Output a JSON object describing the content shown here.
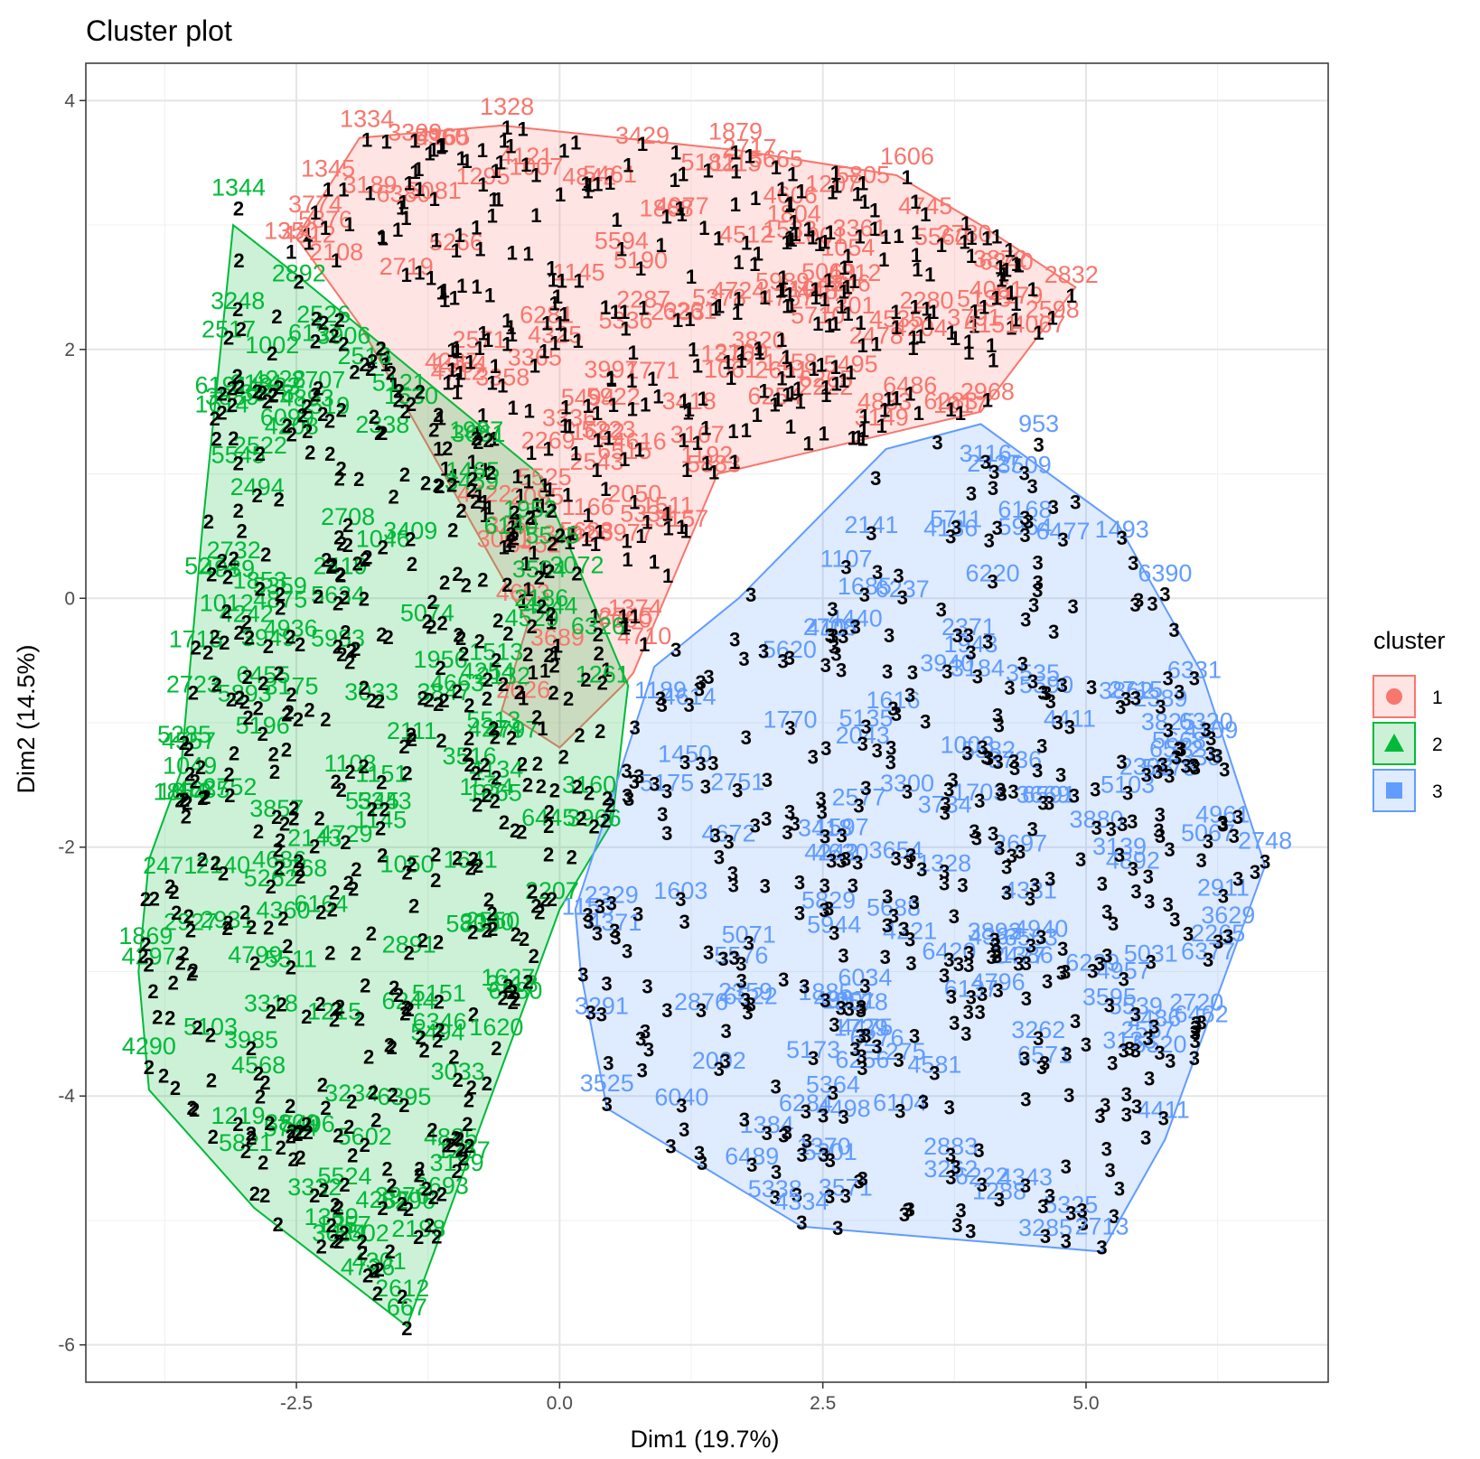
{
  "chart_data": {
    "type": "scatter",
    "title": "Cluster plot",
    "xlabel": "Dim1 (19.7%)",
    "ylabel": "Dim2 (14.5%)",
    "xlim": [
      -4.5,
      7.3
    ],
    "ylim": [
      -6.3,
      4.3
    ],
    "x_ticks": [
      -2.5,
      0.0,
      2.5,
      5.0
    ],
    "x_tick_labels": [
      "-2.5",
      "0.0",
      "2.5",
      "5.0"
    ],
    "y_ticks": [
      -6,
      -4,
      -2,
      0,
      2,
      4
    ],
    "y_tick_labels": [
      "-6",
      "-4",
      "-2",
      "0",
      "2",
      "4"
    ],
    "grid": true,
    "legend": {
      "title": "cluster",
      "position": "right",
      "entries": [
        {
          "label": "1",
          "color": "#F8766D",
          "shape": "circle"
        },
        {
          "label": "2",
          "color": "#00BA38",
          "shape": "triangle"
        },
        {
          "label": "3",
          "color": "#619CFF",
          "shape": "square"
        }
      ]
    },
    "hulls": [
      {
        "cluster": "1",
        "color": "#F8766D",
        "points": [
          [
            -2.5,
            2.9
          ],
          [
            -1.9,
            3.7
          ],
          [
            -0.55,
            3.8
          ],
          [
            1.7,
            3.6
          ],
          [
            3.2,
            3.4
          ],
          [
            4.0,
            3.0
          ],
          [
            4.9,
            2.5
          ],
          [
            4.0,
            1.5
          ],
          [
            1.5,
            1.0
          ],
          [
            0.7,
            -0.6
          ],
          [
            0.6,
            -0.7
          ],
          [
            0.0,
            -1.2
          ],
          [
            -0.55,
            -0.9
          ],
          [
            -0.3,
            -0.2
          ],
          [
            -1.9,
            2.2
          ],
          [
            -2.5,
            2.9
          ]
        ]
      },
      {
        "cluster": "2",
        "color": "#00BA38",
        "points": [
          [
            -3.1,
            3.0
          ],
          [
            -2.5,
            2.6
          ],
          [
            -0.2,
            1.0
          ],
          [
            0.65,
            -0.7
          ],
          [
            0.5,
            -1.8
          ],
          [
            0.0,
            -2.5
          ],
          [
            -1.45,
            -5.85
          ],
          [
            -2.9,
            -4.9
          ],
          [
            -3.9,
            -3.95
          ],
          [
            -4.0,
            -3.0
          ],
          [
            -3.9,
            -2.1
          ],
          [
            -3.6,
            -1.4
          ],
          [
            -3.4,
            0.5
          ],
          [
            -3.1,
            3.0
          ]
        ]
      },
      {
        "cluster": "3",
        "color": "#619CFF",
        "points": [
          [
            0.9,
            -0.55
          ],
          [
            1.7,
            0.0
          ],
          [
            3.1,
            1.2
          ],
          [
            4.0,
            1.4
          ],
          [
            5.3,
            0.6
          ],
          [
            6.1,
            -0.6
          ],
          [
            6.7,
            -2.15
          ],
          [
            5.75,
            -4.35
          ],
          [
            5.15,
            -5.25
          ],
          [
            2.3,
            -5.05
          ],
          [
            0.45,
            -4.1
          ],
          [
            0.2,
            -3.0
          ],
          [
            0.15,
            -2.5
          ],
          [
            0.9,
            -0.55
          ]
        ]
      }
    ],
    "labeled_points": [
      {
        "label": "1334",
        "cluster": "1",
        "x": -1.83,
        "y": 3.7
      },
      {
        "label": "1328",
        "cluster": "1",
        "x": -0.5,
        "y": 3.8
      },
      {
        "label": "1879",
        "cluster": "1",
        "x": 1.67,
        "y": 3.6
      },
      {
        "label": "1606",
        "cluster": "1",
        "x": 3.3,
        "y": 3.4
      },
      {
        "label": "2832",
        "cluster": "1",
        "x": 4.86,
        "y": 2.45
      },
      {
        "label": "4151",
        "cluster": "1",
        "x": 4.1,
        "y": 2.05
      },
      {
        "label": "1345",
        "cluster": "1",
        "x": -2.2,
        "y": 3.3
      },
      {
        "label": "1350",
        "cluster": "1",
        "x": -2.55,
        "y": 2.8
      },
      {
        "label": "1344",
        "cluster": "2",
        "x": -3.05,
        "y": 3.15
      },
      {
        "label": "2471",
        "cluster": "2",
        "x": -3.7,
        "y": -2.3
      },
      {
        "label": "4290",
        "cluster": "2",
        "x": -3.9,
        "y": -3.75
      },
      {
        "label": "1620",
        "cluster": "2",
        "x": -0.6,
        "y": -3.6
      },
      {
        "label": "667",
        "cluster": "2",
        "x": -1.45,
        "y": -5.85
      },
      {
        "label": "953",
        "cluster": "3",
        "x": 4.55,
        "y": 1.25
      },
      {
        "label": "6390",
        "cluster": "3",
        "x": 5.75,
        "y": 0.05
      },
      {
        "label": "2748",
        "cluster": "3",
        "x": 6.7,
        "y": -2.1
      },
      {
        "label": "3629",
        "cluster": "3",
        "x": 6.35,
        "y": -2.7
      },
      {
        "label": "2720",
        "cluster": "3",
        "x": 6.05,
        "y": -3.4
      },
      {
        "label": "2713",
        "cluster": "3",
        "x": 5.15,
        "y": -5.2
      },
      {
        "label": "4334",
        "cluster": "3",
        "x": 2.3,
        "y": -5.0
      },
      {
        "label": "3525",
        "cluster": "3",
        "x": 0.45,
        "y": -4.05
      }
    ]
  }
}
